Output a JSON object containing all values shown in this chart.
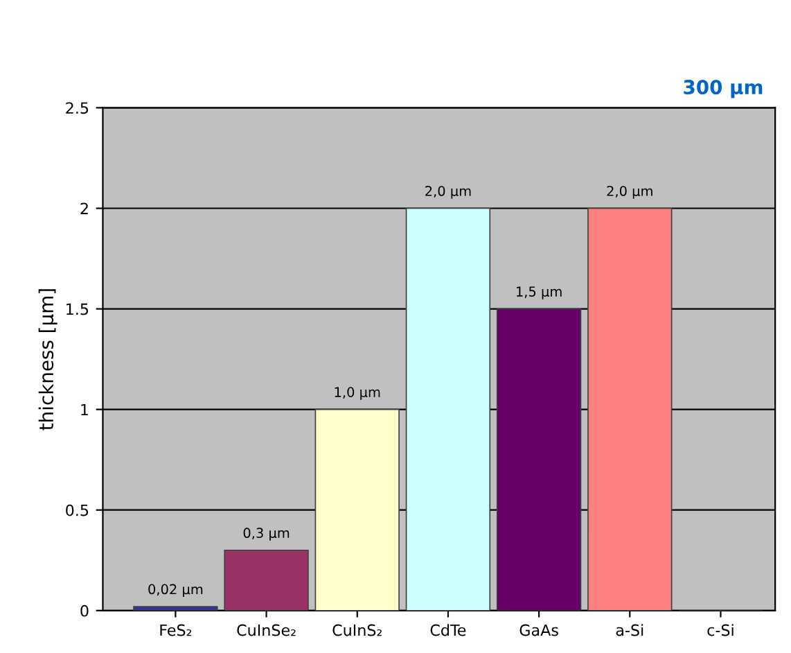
{
  "chart_data": {
    "type": "bar",
    "ylabel": "thickness [µm]",
    "categories": [
      "FeS₂",
      "CuInSe₂",
      "CuInS₂",
      "CdTe",
      "GaAs",
      "a-Si",
      "c-Si"
    ],
    "values": [
      0.02,
      0.3,
      1.0,
      2.0,
      1.5,
      2.0,
      null
    ],
    "annotations": [
      "300 µm"
    ],
    "colors": [
      "#333399",
      "#993366",
      "#ffffcc",
      "#ccffff",
      "#660066",
      "#ff8080",
      "#0066cc"
    ],
    "value_labels": [
      "0,02 µm",
      "0,3 µm",
      "1,0 µm",
      "2,0 µm",
      "1,5 µm",
      "2,0 µm",
      null
    ],
    "ylim": [
      0,
      2.5
    ],
    "yticks": [
      0,
      0.5,
      1,
      1.5,
      2,
      2.5
    ],
    "grid": "y"
  }
}
